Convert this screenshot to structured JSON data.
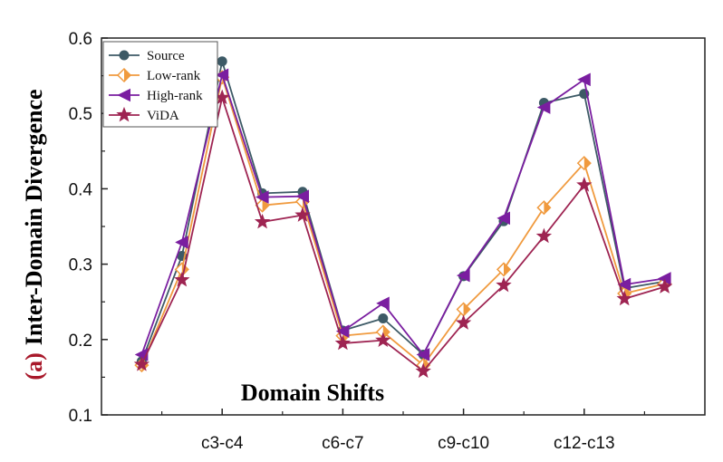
{
  "chart_data": {
    "type": "line",
    "panel_label": "(a)",
    "ylabel": "Inter-Domain Divergence",
    "xlabel": "Domain Shifts",
    "ylim": [
      0.1,
      0.6
    ],
    "yticks": [
      "0.1",
      "0.2",
      "0.3",
      "0.4",
      "0.5",
      "0.6"
    ],
    "xlim": [
      0,
      15
    ],
    "xtick_labels": [
      {
        "x": 3,
        "label": "c3-c4"
      },
      {
        "x": 6,
        "label": "c6-c7"
      },
      {
        "x": 9,
        "label": "c9-c10"
      },
      {
        "x": 12,
        "label": "c12-c13"
      }
    ],
    "x": [
      1,
      2,
      3,
      4,
      5,
      6,
      7,
      8,
      9,
      10,
      11,
      12,
      13,
      14
    ],
    "grid": false,
    "legend_position": "top-left",
    "series": [
      {
        "name": "Source",
        "color": "#3d5a66",
        "marker": "circle",
        "values": [
          0.171,
          0.311,
          0.569,
          0.394,
          0.396,
          0.212,
          0.228,
          0.18,
          0.284,
          0.357,
          0.514,
          0.526,
          0.268,
          0.277
        ]
      },
      {
        "name": "Low-rank",
        "color": "#f09a3e",
        "marker": "diamond",
        "values": [
          0.166,
          0.293,
          0.548,
          0.378,
          0.383,
          0.205,
          0.21,
          0.166,
          0.24,
          0.293,
          0.375,
          0.434,
          0.261,
          0.274
        ]
      },
      {
        "name": "High-rank",
        "color": "#7a1ea0",
        "marker": "triangle-left",
        "values": [
          0.18,
          0.329,
          0.551,
          0.389,
          0.39,
          0.211,
          0.248,
          0.18,
          0.285,
          0.361,
          0.508,
          0.545,
          0.273,
          0.281
        ]
      },
      {
        "name": "ViDA",
        "color": "#9e2452",
        "marker": "star",
        "values": [
          0.167,
          0.279,
          0.521,
          0.356,
          0.365,
          0.195,
          0.199,
          0.158,
          0.222,
          0.272,
          0.337,
          0.405,
          0.254,
          0.27
        ]
      }
    ]
  }
}
